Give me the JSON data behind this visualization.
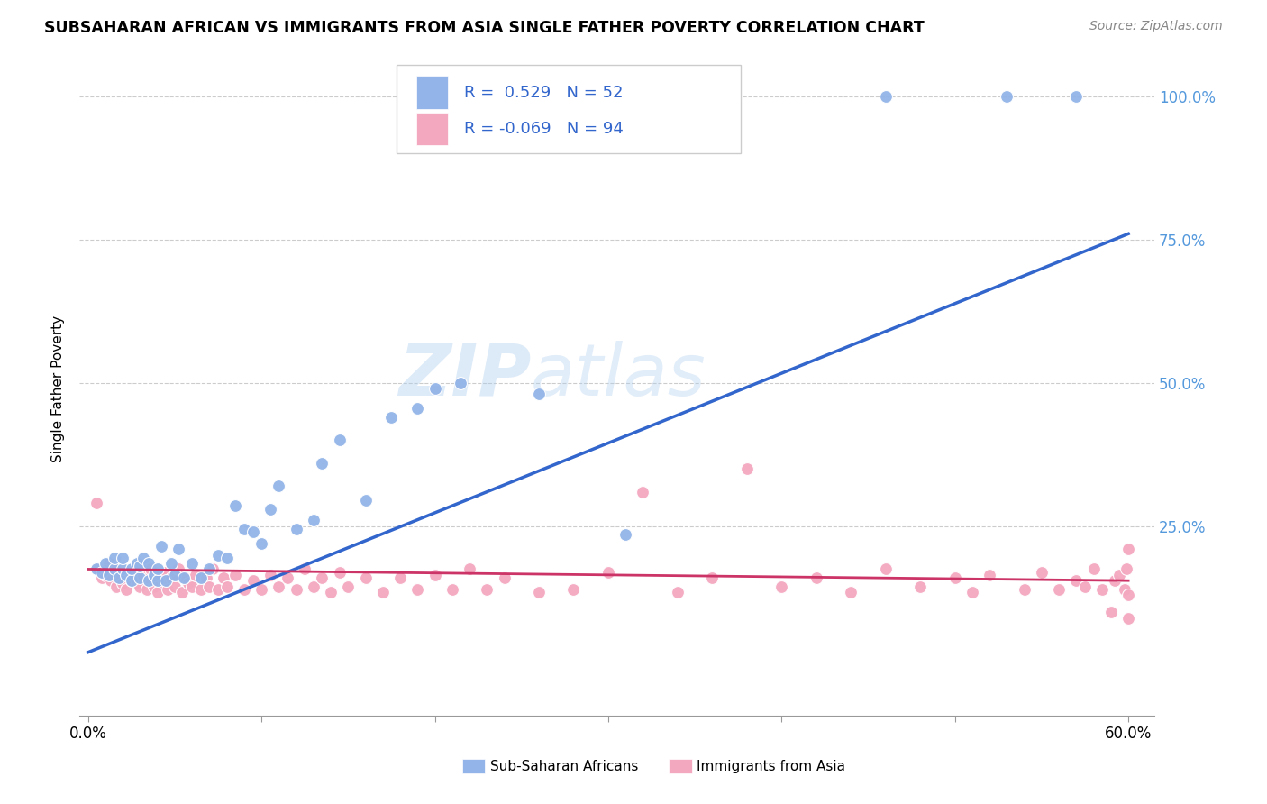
{
  "title": "SUBSAHARAN AFRICAN VS IMMIGRANTS FROM ASIA SINGLE FATHER POVERTY CORRELATION CHART",
  "source": "Source: ZipAtlas.com",
  "ylabel": "Single Father Poverty",
  "legend_labels": [
    "Sub-Saharan Africans",
    "Immigrants from Asia"
  ],
  "blue_R": "R =  0.529",
  "blue_N": "N = 52",
  "pink_R": "R = -0.069",
  "pink_N": "N = 94",
  "blue_color": "#92B4E8",
  "blue_line_color": "#3366CC",
  "pink_color": "#F4A8C0",
  "pink_line_color": "#CC3366",
  "right_label_color": "#5599DD",
  "watermark_color": "#BBDDEE",
  "xlim": [
    0.0,
    0.6
  ],
  "ylim": [
    0.0,
    1.0
  ],
  "ytick_labels": [
    "25.0%",
    "50.0%",
    "75.0%",
    "100.0%"
  ],
  "ytick_values": [
    0.25,
    0.5,
    0.75,
    1.0
  ],
  "xtick_show": [
    0.0,
    0.6
  ],
  "xtick_minor": [
    0.1,
    0.2,
    0.3,
    0.4,
    0.5
  ],
  "blue_line_x0": 0.0,
  "blue_line_y0": 0.03,
  "blue_line_x1": 0.6,
  "blue_line_y1": 0.76,
  "pink_line_x0": 0.0,
  "pink_line_y0": 0.175,
  "pink_line_x1": 0.6,
  "pink_line_y1": 0.155,
  "blue_scatter_x": [
    0.005,
    0.008,
    0.01,
    0.012,
    0.015,
    0.015,
    0.018,
    0.02,
    0.02,
    0.022,
    0.025,
    0.025,
    0.028,
    0.03,
    0.03,
    0.032,
    0.035,
    0.035,
    0.038,
    0.04,
    0.04,
    0.042,
    0.045,
    0.048,
    0.05,
    0.052,
    0.055,
    0.06,
    0.065,
    0.07,
    0.075,
    0.08,
    0.085,
    0.09,
    0.095,
    0.1,
    0.105,
    0.11,
    0.12,
    0.13,
    0.135,
    0.145,
    0.16,
    0.175,
    0.19,
    0.2,
    0.215,
    0.26,
    0.31,
    0.46,
    0.53,
    0.57
  ],
  "blue_scatter_y": [
    0.175,
    0.17,
    0.185,
    0.165,
    0.175,
    0.195,
    0.16,
    0.175,
    0.195,
    0.165,
    0.155,
    0.175,
    0.185,
    0.16,
    0.18,
    0.195,
    0.155,
    0.185,
    0.165,
    0.155,
    0.175,
    0.215,
    0.155,
    0.185,
    0.165,
    0.21,
    0.16,
    0.185,
    0.16,
    0.175,
    0.2,
    0.195,
    0.285,
    0.245,
    0.24,
    0.22,
    0.28,
    0.32,
    0.245,
    0.26,
    0.36,
    0.4,
    0.295,
    0.44,
    0.455,
    0.49,
    0.5,
    0.48,
    0.235,
    1.0,
    1.0,
    1.0
  ],
  "pink_scatter_x": [
    0.005,
    0.006,
    0.008,
    0.01,
    0.012,
    0.013,
    0.015,
    0.016,
    0.018,
    0.02,
    0.022,
    0.024,
    0.025,
    0.026,
    0.028,
    0.03,
    0.032,
    0.034,
    0.035,
    0.036,
    0.038,
    0.04,
    0.042,
    0.044,
    0.045,
    0.046,
    0.048,
    0.05,
    0.052,
    0.054,
    0.056,
    0.058,
    0.06,
    0.062,
    0.065,
    0.068,
    0.07,
    0.072,
    0.075,
    0.078,
    0.08,
    0.085,
    0.09,
    0.095,
    0.1,
    0.105,
    0.11,
    0.115,
    0.12,
    0.125,
    0.13,
    0.135,
    0.14,
    0.145,
    0.15,
    0.16,
    0.17,
    0.18,
    0.19,
    0.2,
    0.21,
    0.22,
    0.23,
    0.24,
    0.26,
    0.28,
    0.3,
    0.32,
    0.34,
    0.36,
    0.38,
    0.4,
    0.42,
    0.44,
    0.46,
    0.48,
    0.5,
    0.51,
    0.52,
    0.54,
    0.55,
    0.56,
    0.57,
    0.575,
    0.58,
    0.585,
    0.59,
    0.592,
    0.595,
    0.598,
    0.599,
    0.6,
    0.6,
    0.6
  ],
  "pink_scatter_y": [
    0.29,
    0.175,
    0.16,
    0.165,
    0.185,
    0.155,
    0.175,
    0.145,
    0.165,
    0.15,
    0.14,
    0.165,
    0.155,
    0.17,
    0.15,
    0.145,
    0.165,
    0.14,
    0.16,
    0.175,
    0.145,
    0.135,
    0.165,
    0.15,
    0.17,
    0.14,
    0.16,
    0.145,
    0.175,
    0.135,
    0.16,
    0.15,
    0.145,
    0.165,
    0.14,
    0.16,
    0.145,
    0.175,
    0.14,
    0.16,
    0.145,
    0.165,
    0.14,
    0.155,
    0.14,
    0.165,
    0.145,
    0.16,
    0.14,
    0.175,
    0.145,
    0.16,
    0.135,
    0.17,
    0.145,
    0.16,
    0.135,
    0.16,
    0.14,
    0.165,
    0.14,
    0.175,
    0.14,
    0.16,
    0.135,
    0.14,
    0.17,
    0.31,
    0.135,
    0.16,
    0.35,
    0.145,
    0.16,
    0.135,
    0.175,
    0.145,
    0.16,
    0.135,
    0.165,
    0.14,
    0.17,
    0.14,
    0.155,
    0.145,
    0.175,
    0.14,
    0.1,
    0.155,
    0.165,
    0.14,
    0.175,
    0.09,
    0.13,
    0.21
  ],
  "background_color": "#ffffff",
  "grid_color": "#cccccc"
}
